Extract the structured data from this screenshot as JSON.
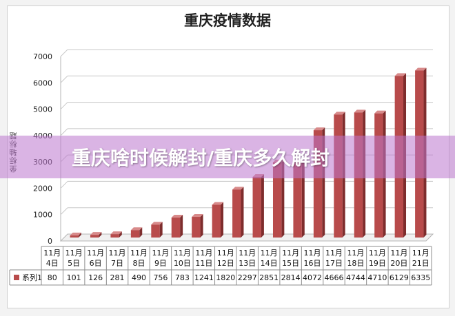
{
  "chart_data": {
    "type": "bar",
    "title": "重庆疫情数据",
    "ylabel": "坐标轴标题",
    "xlabel": "",
    "ylim": [
      0,
      7000
    ],
    "yticks": [
      0,
      1000,
      2000,
      3000,
      4000,
      5000,
      6000,
      7000
    ],
    "grid": true,
    "legend": "table-left",
    "categories": [
      "11月4日",
      "11月5日",
      "11月6日",
      "11月7日",
      "11月8日",
      "11月9日",
      "11月10日",
      "11月11日",
      "11月12日",
      "11月13日",
      "11月14日",
      "11月15日",
      "11月16日",
      "11月17日",
      "11月18日",
      "11月19日",
      "11月20日",
      "11月21日"
    ],
    "category_lines": [
      [
        "11月",
        "4日"
      ],
      [
        "11月",
        "5日"
      ],
      [
        "11月",
        "6日"
      ],
      [
        "11月",
        "7日"
      ],
      [
        "11月",
        "8日"
      ],
      [
        "11月",
        "9日"
      ],
      [
        "11月",
        "10日"
      ],
      [
        "11月",
        "11日"
      ],
      [
        "11月",
        "12日"
      ],
      [
        "11月",
        "13日"
      ],
      [
        "11月",
        "14日"
      ],
      [
        "11月",
        "15日"
      ],
      [
        "11月",
        "16日"
      ],
      [
        "11月",
        "17日"
      ],
      [
        "11月",
        "18日"
      ],
      [
        "11月",
        "19日"
      ],
      [
        "11月",
        "20日"
      ],
      [
        "11月",
        "21日"
      ]
    ],
    "series": [
      {
        "name": "系列1",
        "color": "#b84b4b",
        "values": [
          80,
          101,
          126,
          281,
          490,
          756,
          783,
          1241,
          1820,
          2297,
          2851,
          2814,
          4072,
          4666,
          4744,
          4710,
          6129,
          6335
        ]
      }
    ]
  },
  "overlay": {
    "banner_text": "重庆啥时候解封/重庆多久解封",
    "banner_color": "#bc76cd"
  }
}
